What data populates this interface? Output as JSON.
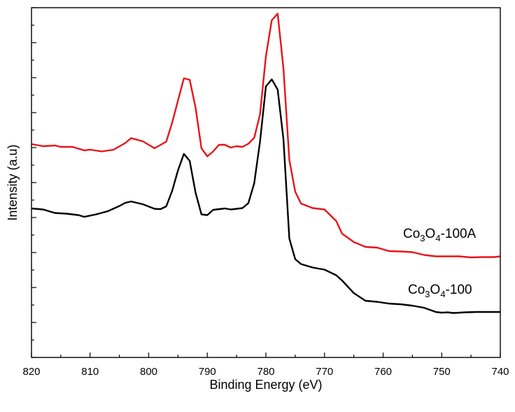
{
  "chart_data": {
    "type": "line",
    "title": "",
    "xlabel": "Binding Energy (eV)",
    "ylabel": "Intensity (a.u)",
    "xlim": [
      820,
      740
    ],
    "x_reversed": true,
    "ylim": [
      0,
      100
    ],
    "y_tick_labels_shown": false,
    "grid": false,
    "x_ticks": [
      820,
      810,
      800,
      790,
      780,
      770,
      760,
      750,
      740
    ],
    "x_tick_labels": [
      "820",
      "810",
      "800",
      "790",
      "780",
      "770",
      "760",
      "750",
      "740"
    ],
    "series": [
      {
        "name": "Co3O4-100A",
        "label_parts": [
          {
            "t": "Co"
          },
          {
            "t": "3",
            "sub": true
          },
          {
            "t": "O"
          },
          {
            "t": "4",
            "sub": true
          },
          {
            "t": "-100A"
          }
        ],
        "color": "#e8141a",
        "x": [
          820,
          818,
          816,
          815,
          813,
          811,
          810,
          808,
          806,
          804,
          803,
          801,
          799,
          797,
          796,
          795,
          794,
          793,
          792,
          791,
          790,
          789,
          788,
          787,
          786,
          785,
          784,
          783,
          782,
          781,
          780,
          779,
          778,
          777,
          776,
          775,
          774,
          772,
          770,
          768,
          767,
          765,
          763,
          761,
          759,
          757,
          755,
          753,
          751,
          749,
          747,
          745,
          743,
          741,
          740
        ],
        "y": [
          61.0,
          60.4,
          60.6,
          60.2,
          60.2,
          59.2,
          59.4,
          58.9,
          59.4,
          61.3,
          62.7,
          61.8,
          59.8,
          61.7,
          67.1,
          73.5,
          79.8,
          79.4,
          71.4,
          59.8,
          57.5,
          58.9,
          60.8,
          60.8,
          60.0,
          60.4,
          60.2,
          61.1,
          62.8,
          69.5,
          86.1,
          96.4,
          98.3,
          82.6,
          56.5,
          47.4,
          44.0,
          42.7,
          42.3,
          39.0,
          35.4,
          33.0,
          31.6,
          31.4,
          30.4,
          30.3,
          30.1,
          29.3,
          28.9,
          28.9,
          28.9,
          28.6,
          28.7,
          28.7,
          28.9
        ]
      },
      {
        "name": "Co3O4-100",
        "label_parts": [
          {
            "t": "Co"
          },
          {
            "t": "3",
            "sub": true
          },
          {
            "t": "O"
          },
          {
            "t": "4",
            "sub": true
          },
          {
            "t": "-100"
          }
        ],
        "color": "#000000",
        "x": [
          820,
          818,
          816,
          814,
          812,
          811,
          809,
          807,
          805,
          804,
          803,
          801,
          799,
          798,
          797,
          796,
          795,
          794,
          793,
          792,
          791,
          790,
          789,
          787,
          786,
          784,
          783,
          782,
          781,
          780,
          779,
          778,
          777,
          776,
          775,
          774,
          772,
          770,
          768,
          767,
          765,
          763,
          761,
          759,
          757,
          755,
          753,
          751,
          750,
          749,
          748,
          746,
          744,
          742,
          740
        ],
        "y": [
          42.6,
          42.3,
          41.3,
          41.1,
          40.7,
          40.2,
          40.9,
          41.8,
          43.3,
          44.2,
          44.6,
          43.8,
          42.5,
          42.4,
          43.2,
          47.6,
          53.5,
          58.2,
          56.2,
          47.1,
          40.9,
          40.7,
          42.2,
          42.6,
          42.3,
          42.7,
          44.1,
          49.8,
          61.7,
          77.5,
          79.5,
          76.6,
          62.4,
          34.0,
          28.1,
          26.7,
          25.7,
          25.1,
          23.5,
          22.0,
          18.4,
          16.2,
          15.9,
          15.4,
          15.2,
          14.8,
          14.2,
          13.0,
          12.8,
          12.9,
          12.7,
          12.9,
          13.0,
          13.0,
          13.0
        ]
      }
    ]
  }
}
